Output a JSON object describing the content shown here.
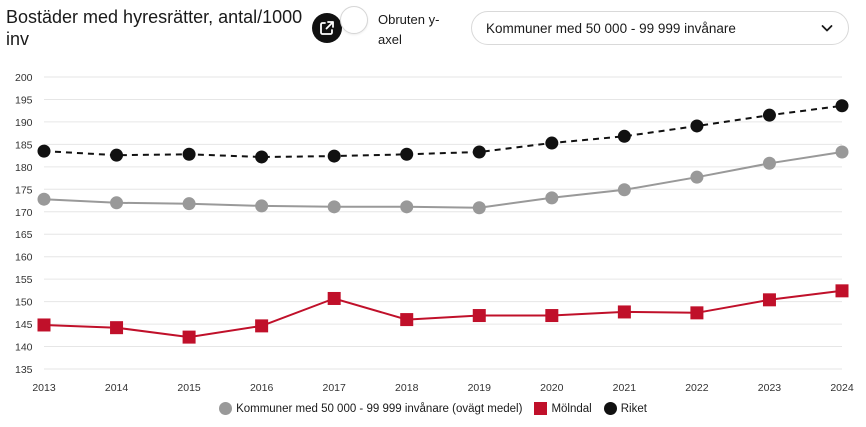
{
  "header": {
    "title": "Bostäder med hyresrätter, antal/1000 inv",
    "share_icon": "external-share-icon",
    "toggle_label": "Obruten y-axel",
    "toggle_on": false,
    "select_value": "Kommuner med 50 000 - 99 999 invånare",
    "select_icon": "chevron-down-icon"
  },
  "colors": {
    "kommuner": "#999999",
    "molndal": "#c0102a",
    "riket": "#111111",
    "grid": "#e6e6e6"
  },
  "chart_data": {
    "type": "line",
    "x": [
      "2013",
      "2014",
      "2015",
      "2016",
      "2017",
      "2018",
      "2019",
      "2020",
      "2021",
      "2022",
      "2023",
      "2024"
    ],
    "ylim": [
      135,
      200
    ],
    "yticks": [
      200,
      195,
      190,
      185,
      180,
      175,
      170,
      165,
      160,
      155,
      150,
      145,
      140,
      135
    ],
    "grid": true,
    "legend_position": "bottom",
    "series": [
      {
        "name": "Kommuner med 50 000 - 99 999 invånare (ovägt medel)",
        "marker": "circle",
        "line": "solid",
        "color": "#999999",
        "values": [
          172.8,
          172.0,
          171.8,
          171.3,
          171.1,
          171.1,
          170.9,
          173.1,
          174.9,
          177.7,
          180.8,
          183.3
        ]
      },
      {
        "name": "Mölndal",
        "marker": "square",
        "line": "solid",
        "color": "#c0102a",
        "values": [
          144.8,
          144.2,
          142.1,
          144.6,
          150.7,
          146.0,
          146.9,
          146.9,
          147.7,
          147.5,
          150.4,
          152.4
        ]
      },
      {
        "name": "Riket",
        "marker": "circle",
        "line": "dashed",
        "color": "#111111",
        "values": [
          183.5,
          182.6,
          182.8,
          182.2,
          182.4,
          182.8,
          183.3,
          185.3,
          186.8,
          189.1,
          191.5,
          193.6
        ]
      }
    ]
  }
}
